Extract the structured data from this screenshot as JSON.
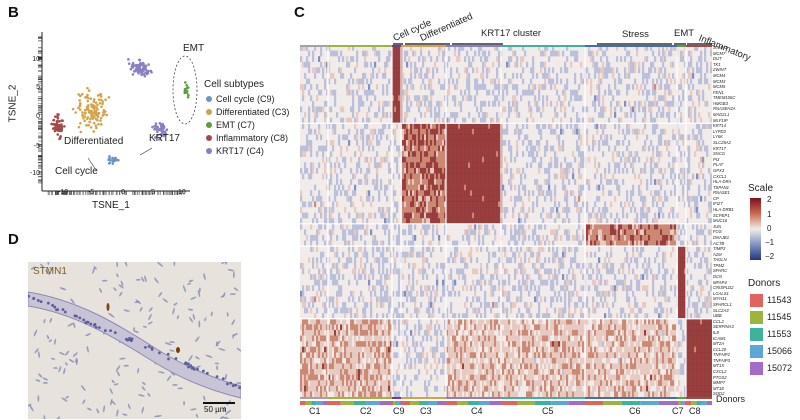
{
  "panels": {
    "b": "B",
    "c": "C",
    "d": "D"
  },
  "tsne": {
    "xlabel": "TSNE_1",
    "ylabel": "TSNE_2",
    "xticks": [
      "-10",
      "-5",
      "0",
      "5",
      "10"
    ],
    "yticks": [
      "10",
      "5",
      "0",
      "-5",
      "-10"
    ],
    "annotations": {
      "emt": "EMT",
      "differentiated": "Differentiated",
      "cell_cycle": "Cell cycle",
      "krt17": "KRT17"
    },
    "legend": {
      "title": "Cell subtypes",
      "items": [
        {
          "label": "Cell cycle (C9)",
          "color": "#6b93c9"
        },
        {
          "label": "Differentiated (C3)",
          "color": "#d4a24a"
        },
        {
          "label": "EMT (C7)",
          "color": "#5aa03c"
        },
        {
          "label": "Inflammatory (C8)",
          "color": "#a24a4a"
        },
        {
          "label": "KRT17 (C4)",
          "color": "#8a7fc0"
        }
      ]
    }
  },
  "ihc": {
    "label": "STMN1",
    "scalebar": "50 µm"
  },
  "heatmap": {
    "groups": [
      {
        "label": "Cell cycle"
      },
      {
        "label": "Differentiated"
      },
      {
        "label": "KRT17 cluster"
      },
      {
        "label": "Stress"
      },
      {
        "label": "EMT"
      },
      {
        "label": "Inflammatory"
      }
    ],
    "clusters": [
      "C1",
      "C2",
      "C9",
      "C3",
      "C4",
      "C5",
      "C6",
      "C7",
      "C8"
    ],
    "genes": [
      "STMN1",
      "MCM7",
      "DUT",
      "TK1",
      "ZWINT",
      "MCM4",
      "MCM3",
      "MCM5",
      "FEN1",
      "TMEM106C",
      "HMGB3",
      "RNASEH2A",
      "MAD2L1",
      "MLF1IP",
      "KRT14",
      "LYPD3",
      "LY6K",
      "SLC26A2",
      "KRT17",
      "SNCG",
      "PI3",
      "PLAT",
      "GPX3",
      "CXCL1",
      "HLA-DRA",
      "TSPAN1",
      "RNASE1",
      "CP",
      "IFI27",
      "HLA-DRB1",
      "SCPEP1",
      "MUC16",
      "JUN",
      "FOS",
      "DNAJB1",
      "ACTB",
      "TIMP3",
      "A2M",
      "TAGLN",
      "TPM2",
      "SPARC",
      "DCN",
      "MFAP4",
      "CRISPLD2",
      "LGALS1",
      "MYH11",
      "SPARCL1",
      "SLC2A3",
      "UBB",
      "CCL2",
      "SERPINA3",
      "IL8",
      "ICAM1",
      "MT2A",
      "CCL20",
      "TNFAIP2",
      "TNFAIP3",
      "MT1X",
      "CXCL2",
      "PTGS2",
      "MMP7",
      "MT1E",
      "SOD2"
    ],
    "scale": {
      "title": "Scale",
      "ticks": [
        "2",
        "1",
        "0",
        "−1",
        "−2"
      ]
    },
    "donors": {
      "title": "Donors",
      "items": [
        {
          "label": "11543",
          "color": "#e0645c"
        },
        {
          "label": "11545",
          "color": "#9bb63b"
        },
        {
          "label": "11553",
          "color": "#3eb39c"
        },
        {
          "label": "15066",
          "color": "#5aa7d8"
        },
        {
          "label": "15072",
          "color": "#a36cc8"
        }
      ],
      "row_label": "Donors"
    }
  }
}
